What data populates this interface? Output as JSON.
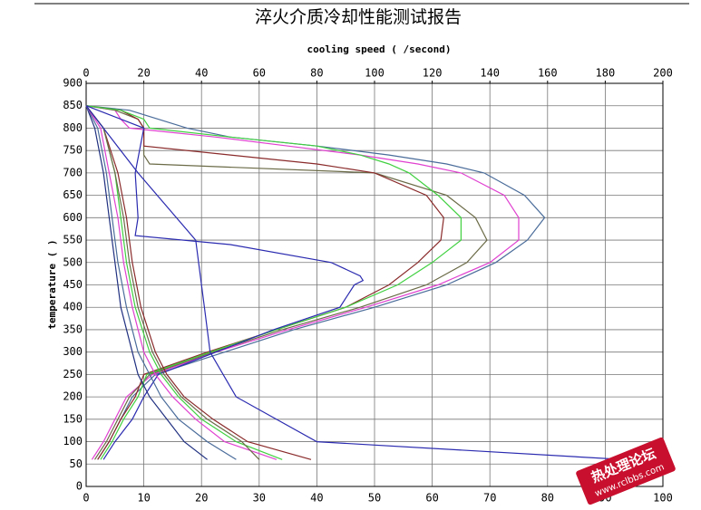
{
  "chart_data": {
    "type": "line",
    "title": "淬火介质冷却性能测试报告",
    "x2label": "cooling speed (  /second)",
    "ylabel": "temperature (  )",
    "annotations": [
      "热处理论坛",
      "www.rclbbs.com"
    ],
    "xlim": [
      0,
      100
    ],
    "xticks": [
      0,
      10,
      20,
      30,
      40,
      50,
      60,
      70,
      80,
      90,
      100
    ],
    "x2lim": [
      0,
      200
    ],
    "x2ticks": [
      0,
      20,
      40,
      60,
      80,
      100,
      120,
      140,
      160,
      180,
      200
    ],
    "ylim": [
      0,
      900
    ],
    "yticks": [
      0,
      50,
      100,
      150,
      200,
      250,
      300,
      350,
      400,
      450,
      500,
      550,
      600,
      650,
      700,
      750,
      800,
      850,
      900
    ],
    "grid": true,
    "series": [
      {
        "color": "#4a6c9a",
        "axis": "x2",
        "x": [
          0,
          15,
          25,
          35,
          50,
          80,
          105,
          125,
          138,
          152,
          159,
          153,
          142,
          125,
          100,
          72,
          48,
          24,
          16,
          12,
          8,
          4
        ],
        "values": [
          850,
          840,
          820,
          800,
          780,
          760,
          740,
          720,
          700,
          650,
          600,
          550,
          500,
          450,
          400,
          350,
          300,
          250,
          200,
          150,
          100,
          60
        ]
      },
      {
        "color": "#e040d0",
        "axis": "x2",
        "x": [
          0,
          10,
          12,
          15,
          45,
          70,
          95,
          115,
          130,
          145,
          150,
          150,
          140,
          122,
          97,
          70,
          45,
          23,
          14,
          10,
          6,
          2
        ],
        "values": [
          850,
          840,
          820,
          800,
          780,
          760,
          740,
          720,
          700,
          650,
          600,
          550,
          500,
          450,
          400,
          350,
          300,
          250,
          200,
          150,
          100,
          60
        ]
      },
      {
        "color": "#6b6b48",
        "axis": "x2",
        "x": [
          0,
          10,
          18,
          20,
          20,
          20,
          20,
          22,
          100,
          125,
          135,
          139,
          132,
          118,
          95,
          68,
          44,
          22,
          15,
          11,
          7,
          3
        ],
        "values": [
          850,
          840,
          820,
          800,
          780,
          760,
          740,
          720,
          700,
          650,
          600,
          550,
          500,
          450,
          400,
          350,
          300,
          250,
          200,
          150,
          100,
          60
        ]
      },
      {
        "color": "#8a2a2a",
        "axis": "x2",
        "x": [
          0,
          12,
          18,
          20,
          20,
          20,
          50,
          80,
          100,
          118,
          124,
          123,
          115,
          105,
          90,
          66,
          42,
          20,
          17,
          12,
          8,
          4
        ],
        "values": [
          850,
          840,
          820,
          800,
          780,
          760,
          740,
          720,
          700,
          650,
          600,
          550,
          500,
          450,
          400,
          350,
          300,
          250,
          200,
          150,
          100,
          60
        ]
      },
      {
        "color": "#40d040",
        "axis": "x2",
        "x": [
          0,
          12,
          20,
          22,
          50,
          80,
          95,
          105,
          112,
          122,
          130,
          130,
          120,
          108,
          90,
          66,
          43,
          21,
          18,
          13,
          9,
          5
        ],
        "values": [
          850,
          840,
          820,
          800,
          780,
          760,
          740,
          720,
          700,
          650,
          600,
          550,
          500,
          450,
          400,
          350,
          300,
          250,
          200,
          150,
          100,
          60
        ]
      },
      {
        "color": "#2a2ab0",
        "axis": "x2",
        "x": [
          0,
          20,
          17,
          18,
          17,
          50,
          85,
          95,
          96,
          93,
          88,
          65,
          45,
          25,
          20,
          16,
          10,
          6
        ],
        "values": [
          850,
          800,
          700,
          600,
          560,
          540,
          500,
          470,
          460,
          450,
          400,
          350,
          300,
          250,
          200,
          150,
          100,
          60
        ]
      },
      {
        "color": "#203080",
        "x": [
          0,
          1.5,
          3,
          4,
          5,
          6,
          8,
          9,
          11,
          14,
          17,
          21
        ],
        "values": [
          850,
          800,
          700,
          600,
          500,
          400,
          300,
          250,
          200,
          150,
          100,
          60
        ]
      },
      {
        "color": "#4a6c9a",
        "x": [
          0,
          2,
          3.5,
          4.5,
          5.5,
          7,
          9,
          11,
          13,
          16,
          21,
          26
        ],
        "values": [
          850,
          800,
          700,
          600,
          500,
          400,
          300,
          250,
          200,
          150,
          100,
          60
        ]
      },
      {
        "color": "#e040d0",
        "x": [
          0,
          2.5,
          4,
          5.5,
          6.5,
          8,
          10,
          12,
          15,
          19,
          24,
          33
        ],
        "values": [
          850,
          800,
          700,
          600,
          500,
          400,
          300,
          250,
          200,
          150,
          100,
          60
        ]
      },
      {
        "color": "#40d040",
        "x": [
          0,
          3,
          5,
          6,
          7,
          8.5,
          11,
          13,
          16,
          20,
          26,
          34
        ],
        "values": [
          850,
          800,
          700,
          600,
          500,
          400,
          300,
          250,
          200,
          150,
          100,
          60
        ]
      },
      {
        "color": "#8a2a2a",
        "x": [
          0,
          3,
          5.5,
          7,
          8,
          9.5,
          12,
          14,
          17,
          22,
          28,
          39
        ],
        "values": [
          850,
          800,
          700,
          600,
          500,
          400,
          300,
          250,
          200,
          150,
          100,
          60
        ]
      },
      {
        "color": "#6b6b48",
        "x": [
          0,
          3,
          5,
          6.5,
          7.5,
          9,
          11.5,
          13.5,
          16.5,
          21,
          27,
          30
        ],
        "values": [
          850,
          800,
          700,
          600,
          500,
          400,
          300,
          250,
          200,
          150,
          100,
          60
        ]
      },
      {
        "color": "#2a2ab0",
        "x": [
          0,
          9,
          19,
          20.5,
          21.5,
          26,
          40,
          100
        ],
        "values": [
          850,
          700,
          550,
          400,
          300,
          200,
          100,
          55
        ]
      }
    ]
  }
}
